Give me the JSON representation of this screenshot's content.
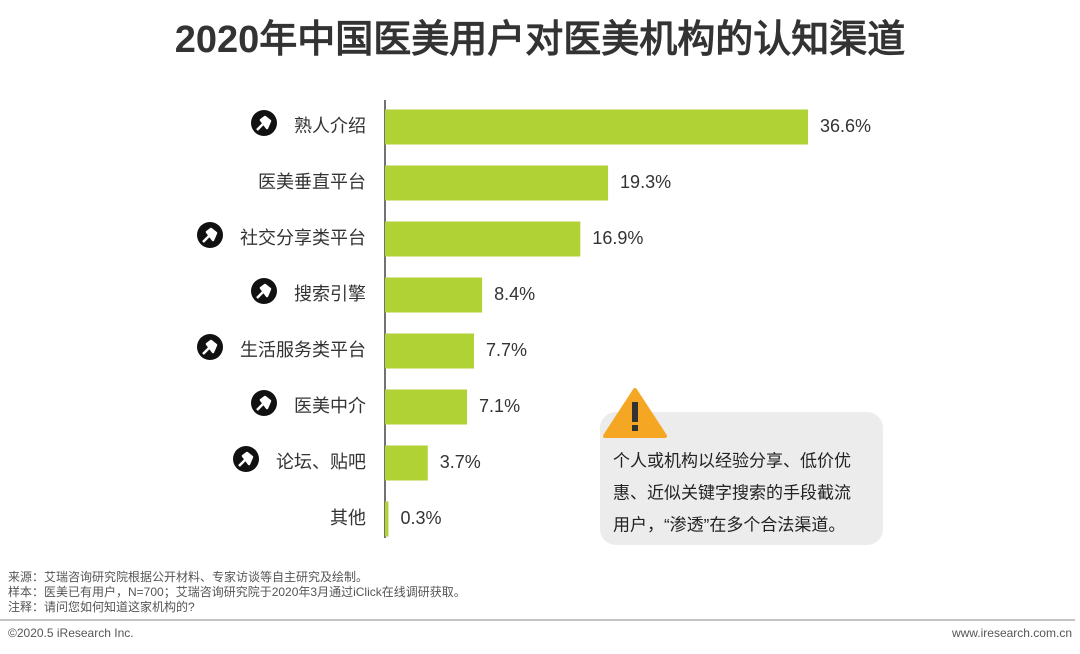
{
  "chart_data": {
    "type": "hbar",
    "title": "2020年中国医美用户对医美机构的认知渠道",
    "categories": [
      "熟人介绍",
      "医美垂直平台",
      "社交分享类平台",
      "搜索引擎",
      "生活服务类平台",
      "医美中介",
      "论坛、贴吧",
      "其他"
    ],
    "values": [
      36.6,
      19.3,
      16.9,
      8.4,
      7.7,
      7.1,
      3.7,
      0.3
    ],
    "value_labels": [
      "36.6%",
      "19.3%",
      "16.9%",
      "8.4%",
      "7.7%",
      "7.1%",
      "3.7%",
      "0.3%"
    ],
    "highlight": [
      true,
      false,
      true,
      true,
      true,
      true,
      true,
      false
    ],
    "color": "#b1d235"
  },
  "note": [
    "个人或机构以经验分享、低价优",
    "惠、近似关键字搜索的手段截流",
    "用户，“渗透”在多个合法渠道。"
  ],
  "sources": [
    "来源：艾瑞咨询研究院根据公开材料、专家访谈等自主研究及绘制。",
    "样本：医美已有用户，N=700；艾瑞咨询研究院于2020年3月通过iClick在线调研获取。",
    "注释：请问您如何知道这家机构的?"
  ],
  "copyright": "©2020.5 iResearch Inc.",
  "website": "www.iresearch.com.cn"
}
